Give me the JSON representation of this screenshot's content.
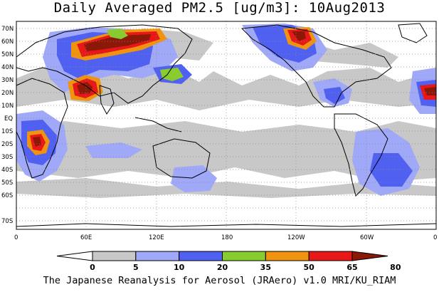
{
  "title": "Daily Averaged PM2.5 [ug/m3]: 10Aug2013",
  "footer": "The Japanese Reanalysis for Aerosol (JRAero) v1.0 MRI/KU_RIAM",
  "lat_labels": [
    "70N",
    "60N",
    "50N",
    "40N",
    "30N",
    "20N",
    "10N",
    "EQ",
    "10S",
    "20S",
    "30S",
    "40S",
    "50S",
    "60S",
    "70S"
  ],
  "lon_labels": [
    "0",
    "60E",
    "120E",
    "180",
    "120W",
    "60W",
    "0"
  ],
  "colorbar": {
    "ticks": [
      "0",
      "5",
      "10",
      "20",
      "35",
      "50",
      "65",
      "80"
    ],
    "colors": [
      "#ffffff",
      "#c8c8c8",
      "#a0a8f8",
      "#5060f0",
      "#88cc30",
      "#f09410",
      "#e81818",
      "#8c1808"
    ]
  },
  "legend_levels_ug_m3": [
    0,
    5,
    10,
    20,
    35,
    50,
    65,
    80
  ]
}
